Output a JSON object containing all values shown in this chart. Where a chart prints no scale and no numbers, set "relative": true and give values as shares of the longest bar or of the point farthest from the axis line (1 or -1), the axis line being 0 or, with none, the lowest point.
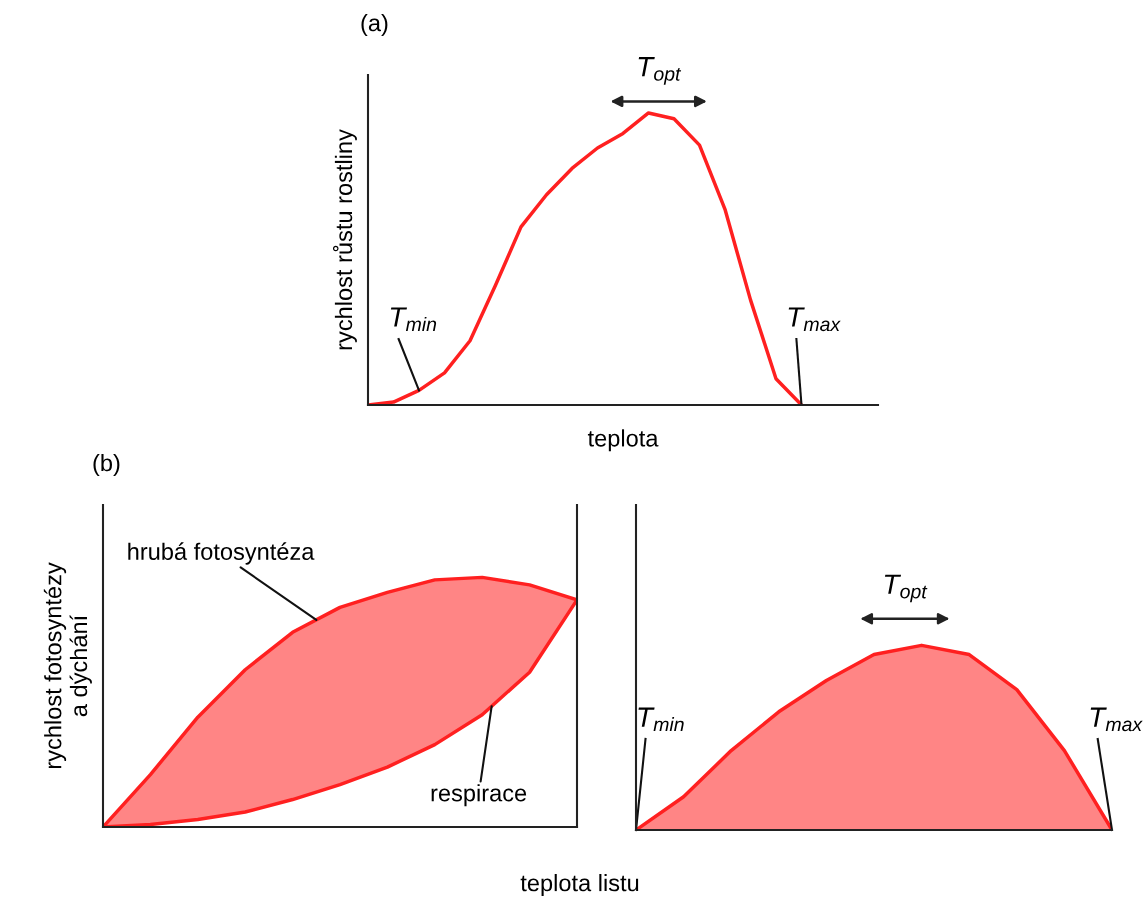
{
  "chart_data": [
    {
      "type": "line",
      "title": "(a)",
      "xlabel": "teplota",
      "ylabel": "rychlost růstu rostliny",
      "relative": true,
      "categories": [
        null,
        null,
        null,
        null,
        null,
        null,
        null,
        null,
        null,
        null,
        null,
        null,
        null,
        null,
        null,
        null,
        null,
        null,
        null,
        null,
        null
      ],
      "series": [
        {
          "color": "#ff2020",
          "values": [
            0.0,
            0.01,
            0.05,
            0.11,
            0.22,
            0.41,
            0.61,
            0.72,
            0.81,
            0.88,
            0.93,
            1.0,
            0.98,
            0.89,
            0.67,
            0.36,
            0.09,
            0.0,
            null,
            null,
            null
          ]
        }
      ],
      "annotations": [
        "T$_{min}$",
        "T$_{opt}$",
        "T$_{max}$"
      ]
    },
    {
      "type": "area",
      "title": "(b)",
      "ylabel": "rychlost fotosyntézy\na dýchání",
      "relative": true,
      "categories": [
        null,
        null,
        null,
        null,
        null,
        null,
        null,
        null,
        null,
        null,
        null
      ],
      "series": [
        {
          "name": "hrubá fotosyntéza",
          "color": "#ff2020",
          "values": [
            0.0,
            0.21,
            0.44,
            0.63,
            0.78,
            0.88,
            0.94,
            0.99,
            1.0,
            0.97,
            0.91
          ]
        },
        {
          "name": "respirace",
          "type": "line",
          "color": "#ff2020",
          "values": [
            0.0,
            0.01,
            0.03,
            0.06,
            0.11,
            0.17,
            0.24,
            0.33,
            0.45,
            0.62,
            0.91
          ]
        }
      ]
    },
    {
      "type": "area",
      "xlabel": "teplota listu",
      "relative": true,
      "categories": [
        null,
        null,
        null,
        null,
        null,
        null,
        null,
        null,
        null,
        null,
        null
      ],
      "series": [
        {
          "color": "#ff2020",
          "values": [
            0.0,
            0.18,
            0.43,
            0.64,
            0.81,
            0.95,
            1.0,
            0.95,
            0.76,
            0.43,
            0.0
          ]
        }
      ],
      "annotations": [
        "T$_{min}$",
        "T$_{opt}$",
        "T$_{max}$"
      ]
    }
  ]
}
